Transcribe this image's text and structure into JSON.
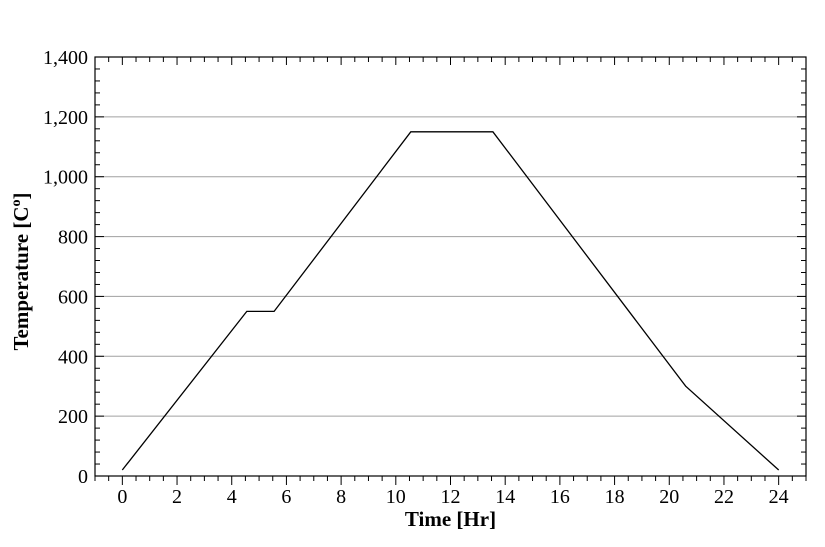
{
  "chart_data": {
    "type": "line",
    "title": "",
    "xlabel": "Time [Hr]",
    "ylabel": "Temperature [Co]",
    "xlim": [
      -1,
      25
    ],
    "ylim": [
      0,
      1400
    ],
    "x_ticks": [
      0,
      2,
      4,
      6,
      8,
      10,
      12,
      14,
      16,
      18,
      20,
      22,
      24
    ],
    "x_tick_labels": [
      "0",
      "2",
      "4",
      "6",
      "8",
      "10",
      "12",
      "14",
      "16",
      "18",
      "20",
      "22",
      "24"
    ],
    "y_ticks": [
      0,
      200,
      400,
      600,
      800,
      1000,
      1200,
      1400
    ],
    "y_tick_labels": [
      "0",
      "200",
      "400",
      "600",
      "800",
      "1,000",
      "1,200",
      "1,400"
    ],
    "grid": "horizontal",
    "legend": "none",
    "series": [
      {
        "x": [
          0,
          4.55,
          5.55,
          10.55,
          13.55,
          20.6,
          24
        ],
        "y": [
          20,
          550,
          550,
          1150,
          1150,
          300,
          20
        ]
      }
    ],
    "colors": {
      "line": "#000000",
      "grid": "#a0a0a0",
      "axes": "#000000"
    }
  }
}
